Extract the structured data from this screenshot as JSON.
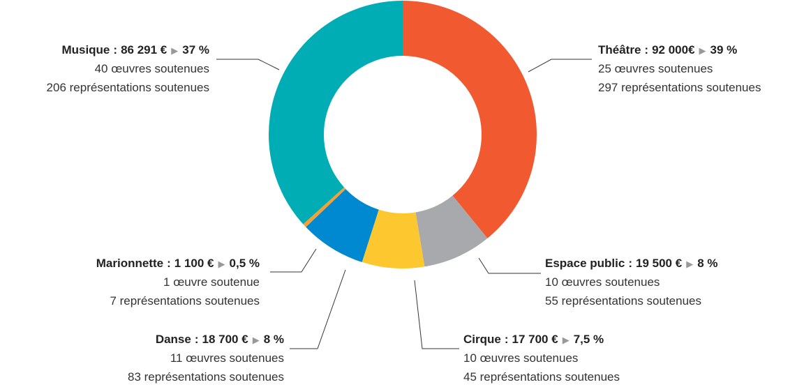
{
  "chart_data": {
    "type": "donut",
    "categories": [
      "Théâtre",
      "Espace public",
      "Cirque",
      "Danse",
      "Marionnette",
      "Musique"
    ],
    "values": [
      92000,
      19500,
      17700,
      18700,
      1100,
      86291
    ],
    "value_labels": [
      "92 000€",
      "19 500 €",
      "17 700 €",
      "18 700 €",
      "1 100 €",
      "86 291 €"
    ],
    "percentages": [
      39,
      8,
      7.5,
      8,
      0.5,
      37
    ],
    "percentage_labels": [
      "39 %",
      "8 %",
      "7,5 %",
      "8 %",
      "0,5 %",
      "37 %"
    ],
    "works": [
      "25 œuvres soutenues",
      "10 œuvres soutenues",
      "10 œuvres soutenues",
      "11 œuvres soutenues",
      "1 œuvre soutenue",
      "40 œuvres soutenues"
    ],
    "performances": [
      "297 représentations soutenues",
      "55 représentations soutenues",
      "45 représentations soutenues",
      "83 représentations soutenues",
      "7 représentations soutenues",
      "206 représentations soutenues"
    ],
    "colors": [
      "#f15a30",
      "#a7a9ac",
      "#fdc82f",
      "#0088d1",
      "#f5a033",
      "#00adb5"
    ],
    "label_separator": ":",
    "marker": "▶"
  }
}
